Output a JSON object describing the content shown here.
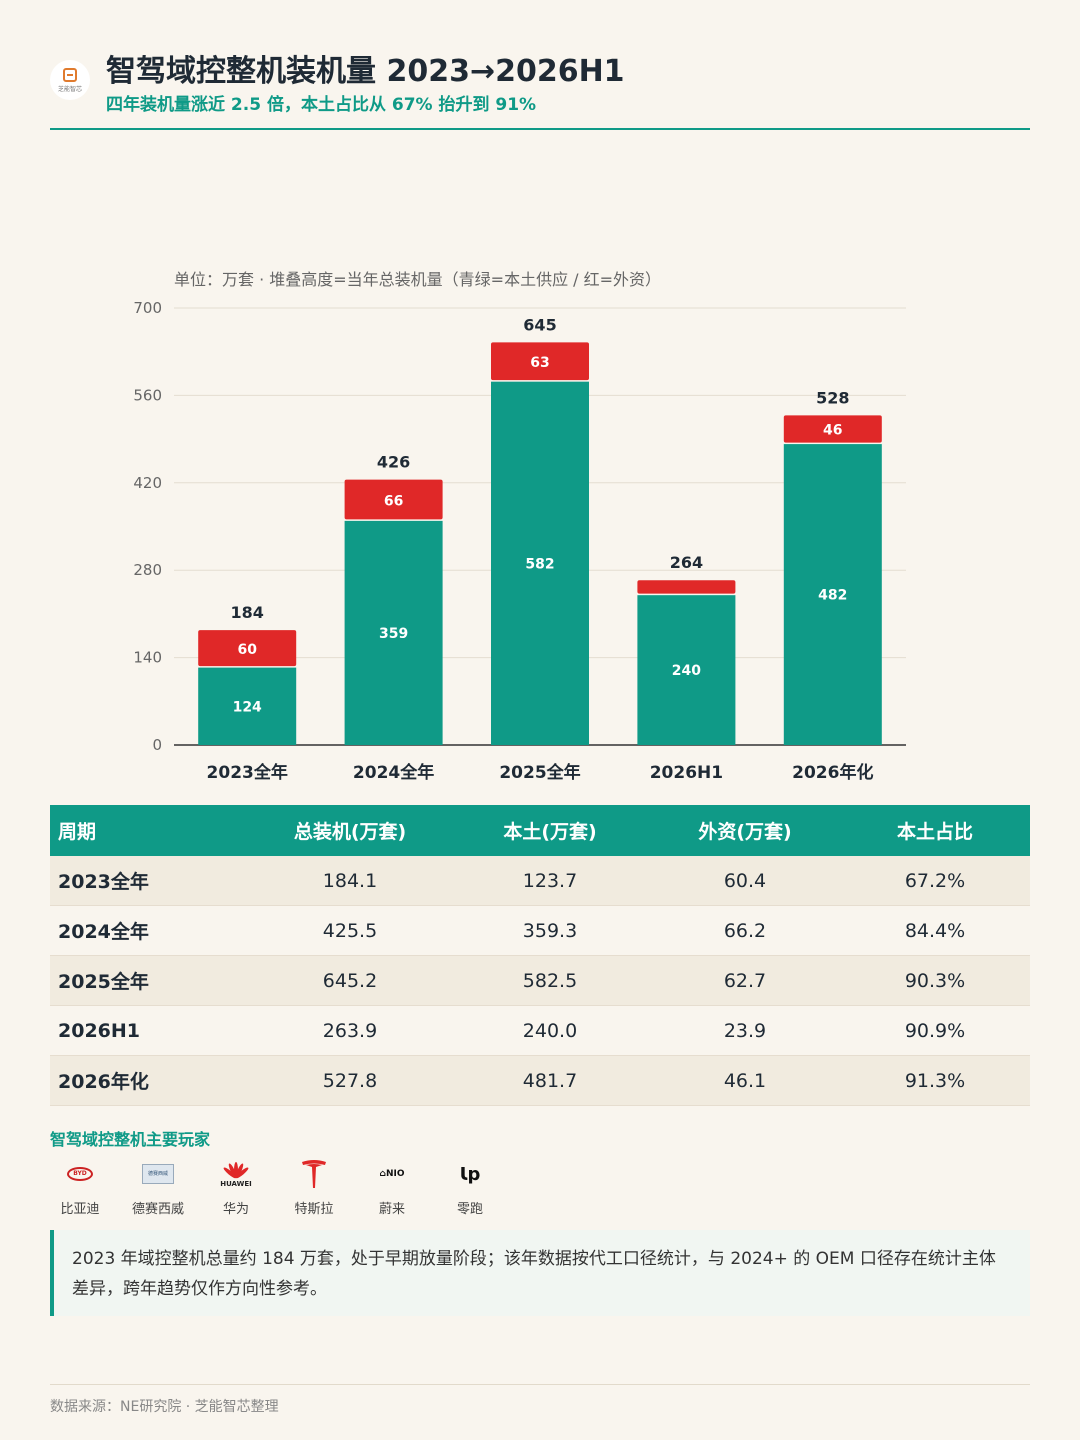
{
  "header": {
    "logo_text": "芝能智芯",
    "title": "智驾域控整机装机量 2023→2026H1",
    "subtitle": "四年装机量涨近 2.5 倍，本土占比从 67% 抬升到 91%"
  },
  "chart_note": "单位：万套 · 堆叠高度=当年总装机量（青绿=本土供应 / 红=外资）",
  "chart_data": {
    "type": "bar",
    "stacked": true,
    "categories": [
      "2023全年",
      "2024全年",
      "2025全年",
      "2026H1",
      "2026年化"
    ],
    "series": [
      {
        "values": [
          124,
          359,
          582,
          240,
          482
        ],
        "color": "#0f9a87"
      },
      {
        "values": [
          60,
          66,
          63,
          24,
          46
        ],
        "color": "#e02828"
      }
    ],
    "segment_labels": [
      [
        "124",
        "359",
        "582",
        "240",
        "482"
      ],
      [
        "60",
        "66",
        "63",
        "",
        "46"
      ]
    ],
    "totals": [
      184,
      426,
      645,
      264,
      528
    ],
    "ylim": [
      0,
      700
    ],
    "yticks": [
      0,
      140,
      280,
      420,
      560,
      700
    ],
    "grid": true
  },
  "table": {
    "headers": [
      "周期",
      "总装机(万套)",
      "本土(万套)",
      "外资(万套)",
      "本土占比"
    ],
    "rows": [
      [
        "2023全年",
        "184.1",
        "123.7",
        "60.4",
        "67.2%"
      ],
      [
        "2024全年",
        "425.5",
        "359.3",
        "66.2",
        "84.4%"
      ],
      [
        "2025全年",
        "645.2",
        "582.5",
        "62.7",
        "90.3%"
      ],
      [
        "2026H1",
        "263.9",
        "240.0",
        "23.9",
        "90.9%"
      ],
      [
        "2026年化",
        "527.8",
        "481.7",
        "46.1",
        "91.3%"
      ]
    ]
  },
  "players": {
    "title": "智驾域控整机主要玩家",
    "items": [
      {
        "name": "比亚迪",
        "logo_text": "BYD",
        "icon": "byd-logo-icon"
      },
      {
        "name": "德赛西威",
        "logo_text": "德赛西威",
        "icon": "desay-logo-icon"
      },
      {
        "name": "华为",
        "logo_text": "HUAWEI",
        "icon": "huawei-logo-icon"
      },
      {
        "name": "特斯拉",
        "logo_text": "",
        "icon": "tesla-logo-icon"
      },
      {
        "name": "蔚来",
        "logo_text": "⌂NIO",
        "icon": "nio-logo-icon"
      },
      {
        "name": "零跑",
        "logo_text": "Ɩp",
        "icon": "leapmotor-logo-icon"
      }
    ]
  },
  "note": "2023 年域控整机总量约 184 万套，处于早期放量阶段；该年数据按代工口径统计，与 2024+ 的 OEM 口径存在统计主体差异，跨年趋势仅作方向性参考。",
  "footer": "数据来源：NE研究院 · 芝能智芯整理",
  "colors": {
    "accent": "#0f9a87",
    "foreign": "#e02828",
    "background": "#f9f5ee"
  }
}
